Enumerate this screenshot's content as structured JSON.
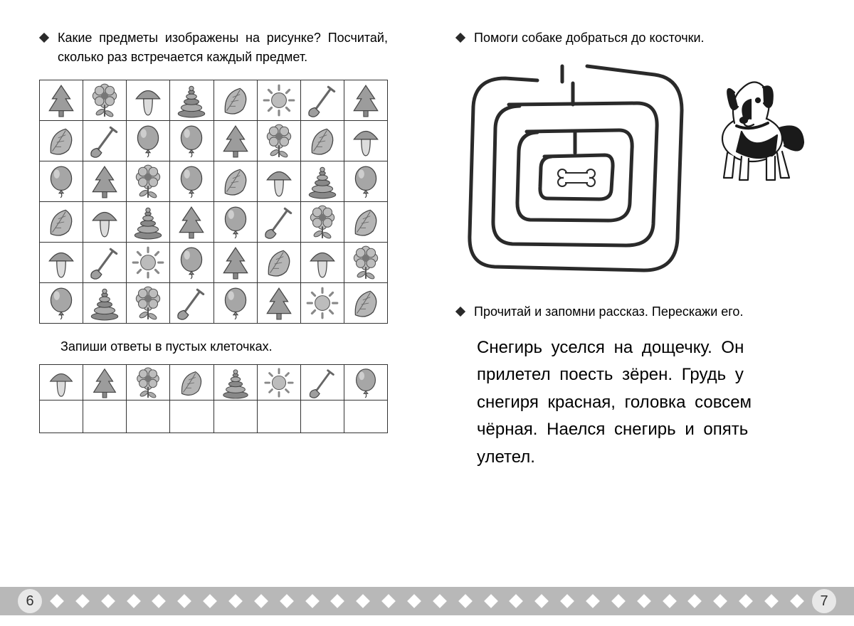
{
  "colors": {
    "ink": "#2a2a2a",
    "grey_light": "#cfcfcf",
    "grey_mid": "#a8a8a8",
    "grey_dark": "#777777",
    "footer_bg": "#b8b8b8",
    "page_bg": "#ffffff",
    "white": "#ffffff"
  },
  "left": {
    "task1": "Какие предметы изображены на рисунке? Посчитай, сколько раз встречается каждый предмет.",
    "grid": {
      "cols": 8,
      "rows": 6,
      "cells": [
        [
          "tree",
          "flower",
          "mushroom",
          "pyramid",
          "leaf",
          "sun",
          "shovel",
          "tree"
        ],
        [
          "leaf",
          "shovel",
          "balloon",
          "balloon",
          "tree",
          "flower",
          "leaf",
          "mushroom"
        ],
        [
          "balloon",
          "tree",
          "flower",
          "balloon",
          "leaf",
          "mushroom",
          "pyramid",
          "balloon"
        ],
        [
          "leaf",
          "mushroom",
          "pyramid",
          "tree",
          "balloon",
          "shovel",
          "flower",
          "leaf"
        ],
        [
          "mushroom",
          "shovel",
          "sun",
          "balloon",
          "tree",
          "leaf",
          "mushroom",
          "flower"
        ],
        [
          "balloon",
          "pyramid",
          "flower",
          "shovel",
          "balloon",
          "tree",
          "sun",
          "leaf"
        ]
      ]
    },
    "sub_instr": "Запиши ответы в пустых клеточках.",
    "answer_row": [
      "mushroom",
      "tree",
      "flower",
      "leaf",
      "pyramid",
      "sun",
      "shovel",
      "balloon"
    ]
  },
  "right": {
    "task2": "Помоги собаке добраться до косточки.",
    "task3": "Прочитай и запомни рассказ. Перескажи его.",
    "story": "Снегирь уселся на дощечку. Он прилетел поесть зёрен. Грудь у снегиря красная, головка совсем чёрная. Наелся снегирь и опять улетел."
  },
  "footer": {
    "left_page": "6",
    "right_page": "7",
    "diamond_count": 30
  },
  "icons": {
    "tree": "tree-icon",
    "flower": "flower-icon",
    "mushroom": "mushroom-icon",
    "pyramid": "pyramid-icon",
    "leaf": "leaf-icon",
    "sun": "sun-icon",
    "shovel": "shovel-icon",
    "balloon": "balloon-icon"
  }
}
